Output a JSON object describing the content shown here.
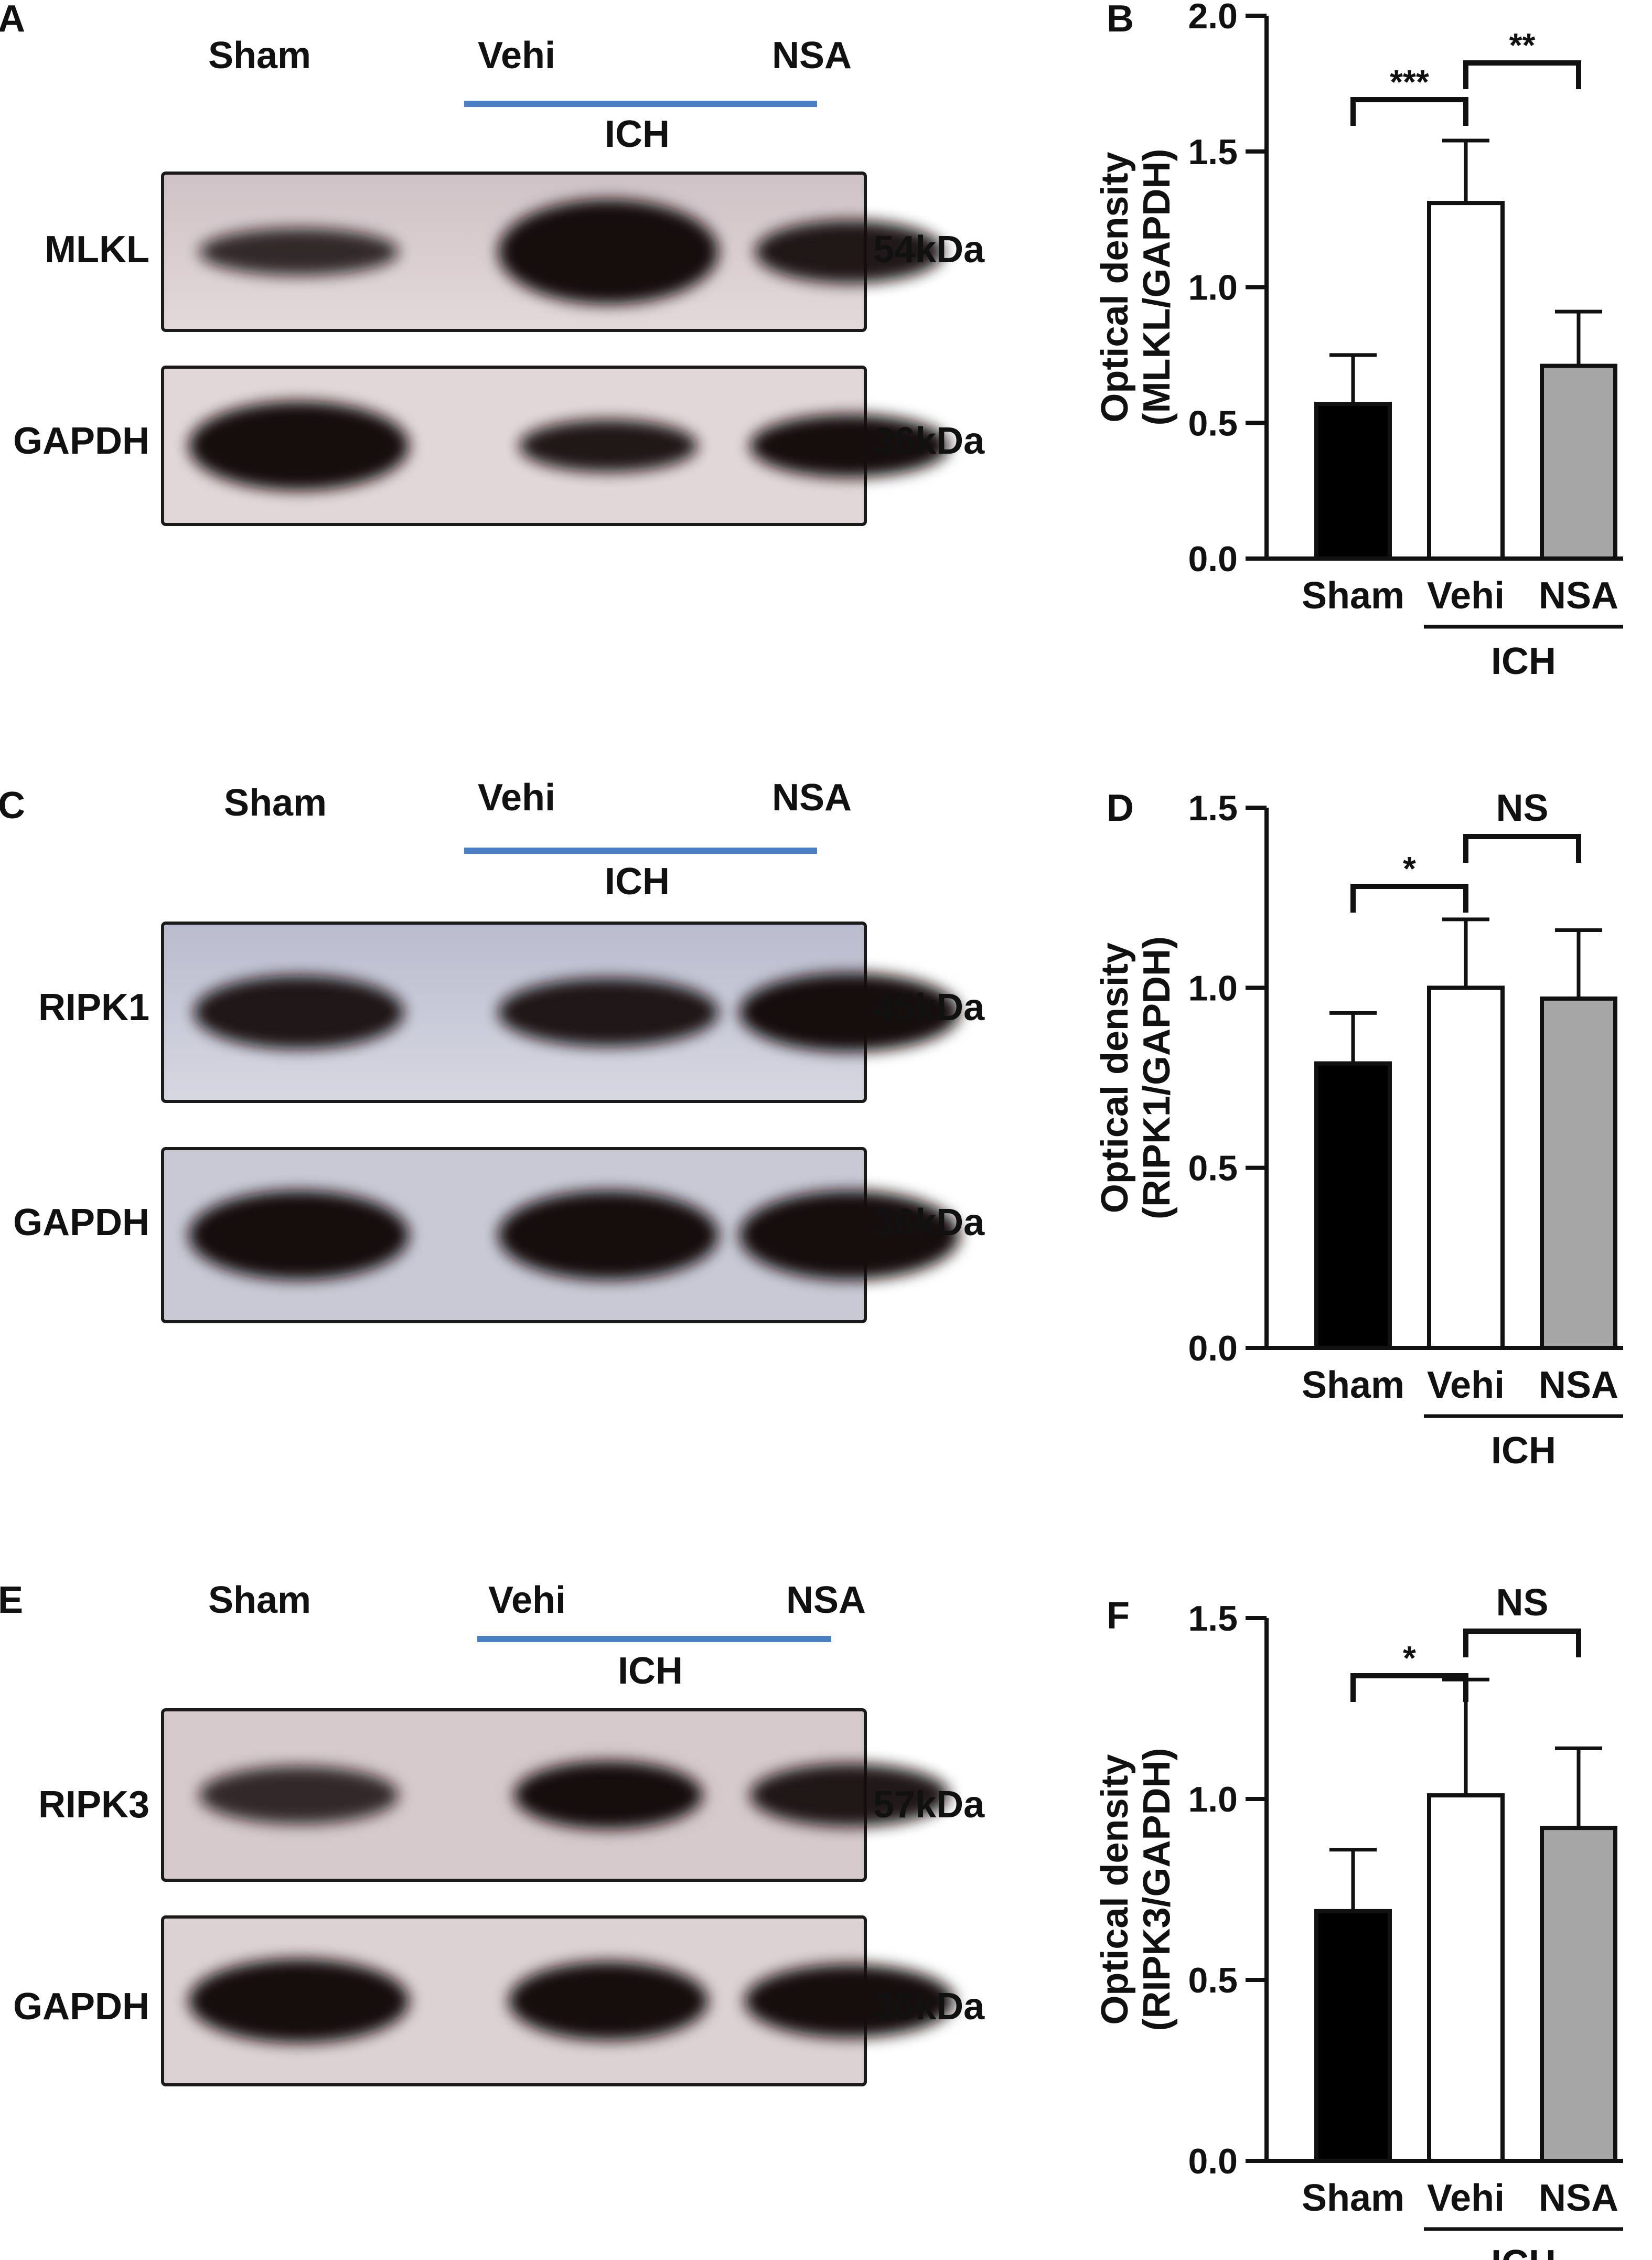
{
  "panels": [
    {
      "letter": "A",
      "type": "western-blot",
      "groups": [
        "Sham",
        "Vehi",
        "NSA"
      ],
      "bracket_label": "ICH",
      "rows": [
        {
          "protein": "MLKL",
          "size": "54kDa"
        },
        {
          "protein": "GAPDH",
          "size": "36kDa"
        }
      ]
    },
    {
      "letter": "C",
      "type": "western-blot",
      "groups": [
        "Sham",
        "Vehi",
        "NSA"
      ],
      "bracket_label": "ICH",
      "rows": [
        {
          "protein": "RIPK1",
          "size": "45kDa"
        },
        {
          "protein": "GAPDH",
          "size": "36kDa"
        }
      ]
    },
    {
      "letter": "E",
      "type": "western-blot",
      "groups": [
        "Sham",
        "Vehi",
        "NSA"
      ],
      "bracket_label": "ICH",
      "rows": [
        {
          "protein": "RIPK3",
          "size": "57kDa"
        },
        {
          "protein": "GAPDH",
          "size": "36kDa"
        }
      ]
    }
  ],
  "colors": {
    "sham": "#000000",
    "vehi": "#ffffff",
    "nsa": "#a6a6a6",
    "ich_bar": "#4a7fc1",
    "blot_bg": "#d9cdd1"
  },
  "chart_data": [
    {
      "letter": "B",
      "type": "bar",
      "categories": [
        "Sham",
        "Vehi",
        "NSA"
      ],
      "values": [
        0.57,
        1.31,
        0.71
      ],
      "errors": [
        0.18,
        0.23,
        0.2
      ],
      "ylabel": [
        "Optical density",
        "(MLKL/GAPDH)"
      ],
      "ylim": [
        0,
        2.0
      ],
      "yticks": [
        "0.0",
        "0.5",
        "1.0",
        "1.5",
        "2.0"
      ],
      "group_label": "ICH",
      "significance": [
        {
          "from": 0,
          "to": 1,
          "label": "***"
        },
        {
          "from": 1,
          "to": 2,
          "label": "**"
        }
      ]
    },
    {
      "letter": "D",
      "type": "bar",
      "categories": [
        "Sham",
        "Vehi",
        "NSA"
      ],
      "values": [
        0.79,
        1.0,
        0.97
      ],
      "errors": [
        0.14,
        0.19,
        0.19
      ],
      "ylabel": [
        "Optical density",
        "(RIPK1/GAPDH)"
      ],
      "ylim": [
        0,
        1.5
      ],
      "yticks": [
        "0.0",
        "0.5",
        "1.0",
        "1.5"
      ],
      "group_label": "ICH",
      "significance": [
        {
          "from": 0,
          "to": 1,
          "label": "*"
        },
        {
          "from": 1,
          "to": 2,
          "label": "NS"
        }
      ]
    },
    {
      "letter": "F",
      "type": "bar",
      "categories": [
        "Sham",
        "Vehi",
        "NSA"
      ],
      "values": [
        0.69,
        1.01,
        0.92
      ],
      "errors": [
        0.17,
        0.32,
        0.22
      ],
      "ylabel": [
        "Optical density",
        "(RIPK3/GAPDH)"
      ],
      "ylim": [
        0,
        1.5
      ],
      "yticks": [
        "0.0",
        "0.5",
        "1.0",
        "1.5"
      ],
      "group_label": "ICH",
      "significance": [
        {
          "from": 0,
          "to": 1,
          "label": "*"
        },
        {
          "from": 1,
          "to": 2,
          "label": "NS"
        }
      ]
    }
  ]
}
